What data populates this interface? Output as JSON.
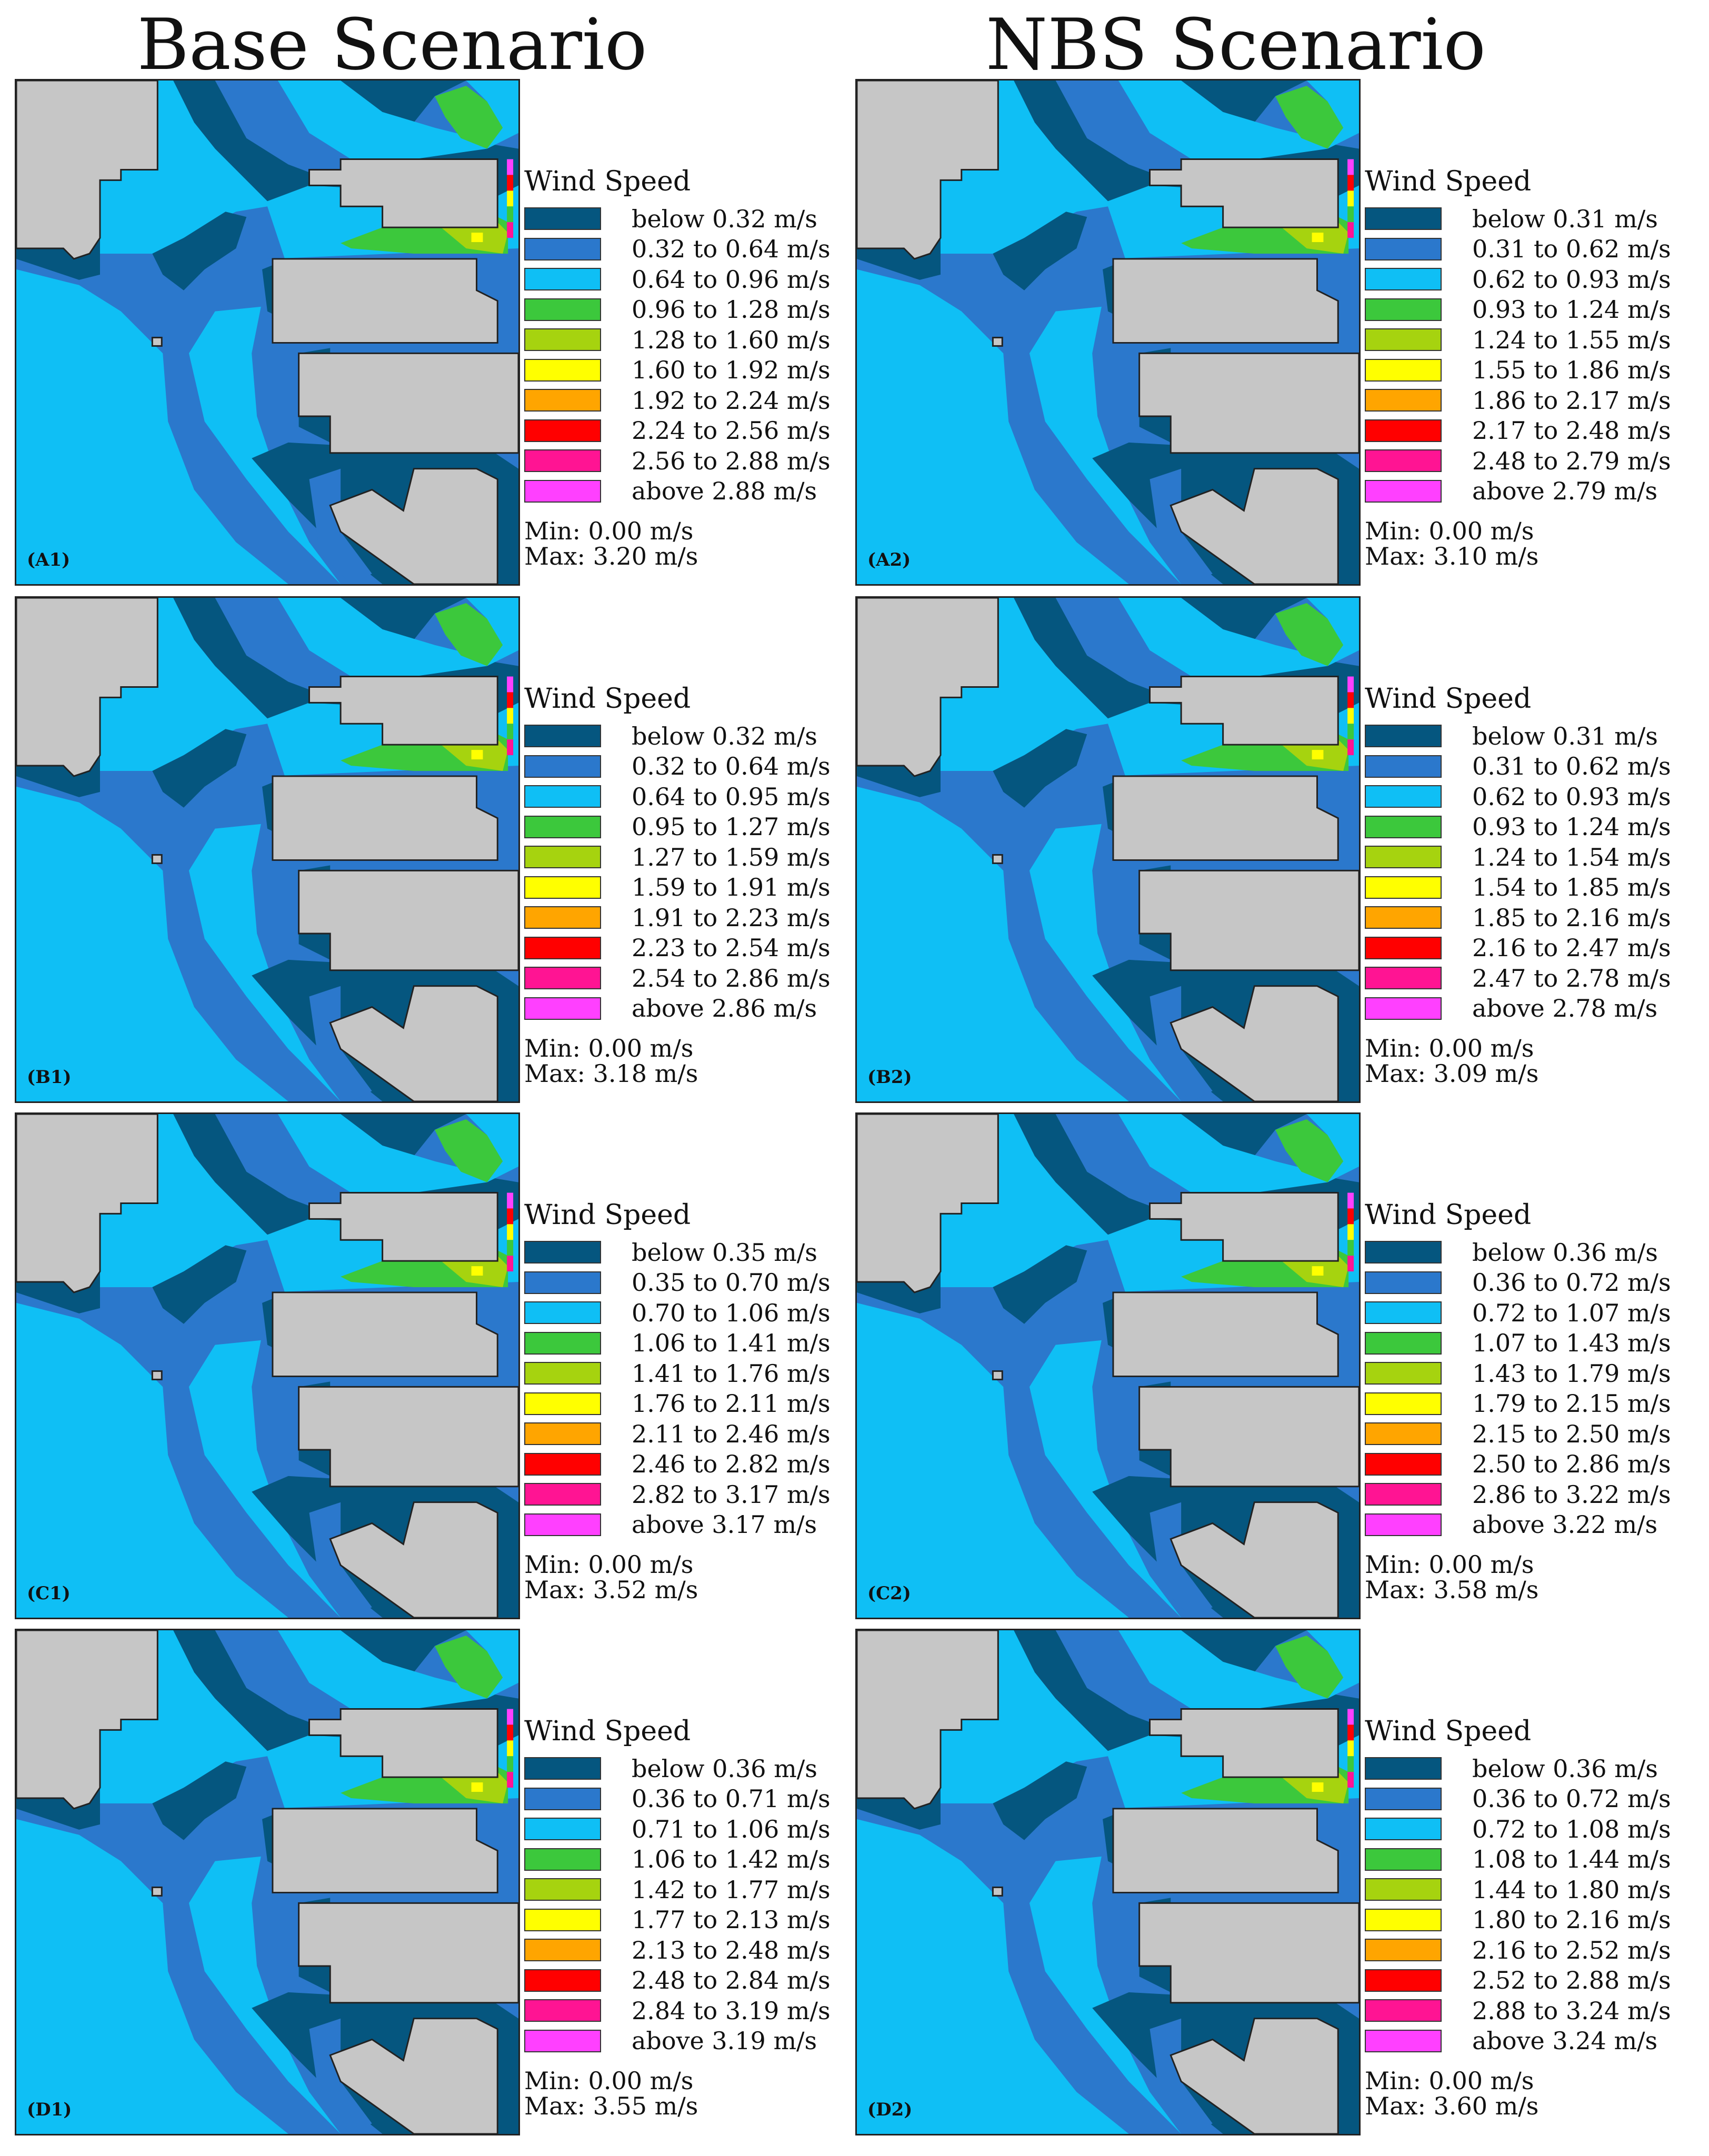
{
  "titles": {
    "base": "Base Scenario",
    "nbs": "NBS Scenario"
  },
  "legend_title": "Wind Speed",
  "colors": [
    "#05567f",
    "#2b78cc",
    "#0fbff5",
    "#3cc83c",
    "#a6d30f",
    "#ffff00",
    "#ffa500",
    "#ff0000",
    "#ff1493",
    "#ff40ff"
  ],
  "map_colors": {
    "background": "#0fbff5",
    "low": "#05567f",
    "mid": "#2b78cc",
    "building": "#c6c6c6",
    "green": "#3cc83c",
    "yellowgreen": "#a6d30f",
    "yellow": "#ffff00"
  },
  "panels": [
    {
      "label": "(A1)",
      "min": "Min: 0.00 m/s",
      "max": "Max: 3.20 m/s",
      "ranges": [
        "below 0.32 m/s",
        "0.32 to 0.64 m/s",
        "0.64 to 0.96 m/s",
        "0.96 to 1.28 m/s",
        "1.28 to 1.60 m/s",
        "1.60 to 1.92 m/s",
        "1.92 to 2.24 m/s",
        "2.24 to 2.56 m/s",
        "2.56 to 2.88 m/s",
        "above 2.88 m/s"
      ]
    },
    {
      "label": "(A2)",
      "min": "Min: 0.00 m/s",
      "max": "Max: 3.10 m/s",
      "ranges": [
        "below 0.31 m/s",
        "0.31 to 0.62 m/s",
        "0.62 to 0.93 m/s",
        "0.93 to 1.24 m/s",
        "1.24 to 1.55 m/s",
        "1.55 to 1.86 m/s",
        "1.86 to 2.17 m/s",
        "2.17 to 2.48 m/s",
        "2.48 to 2.79 m/s",
        "above 2.79 m/s"
      ]
    },
    {
      "label": "(B1)",
      "min": "Min: 0.00 m/s",
      "max": "Max: 3.18 m/s",
      "ranges": [
        "below 0.32 m/s",
        "0.32 to 0.64 m/s",
        "0.64 to 0.95 m/s",
        "0.95 to 1.27 m/s",
        "1.27 to 1.59 m/s",
        "1.59 to 1.91 m/s",
        "1.91 to 2.23 m/s",
        "2.23 to 2.54 m/s",
        "2.54 to 2.86 m/s",
        "above 2.86 m/s"
      ]
    },
    {
      "label": "(B2)",
      "min": "Min: 0.00 m/s",
      "max": "Max: 3.09 m/s",
      "ranges": [
        "below 0.31 m/s",
        "0.31 to 0.62 m/s",
        "0.62 to 0.93 m/s",
        "0.93 to 1.24 m/s",
        "1.24 to 1.54 m/s",
        "1.54 to 1.85 m/s",
        "1.85 to 2.16 m/s",
        "2.16 to 2.47 m/s",
        "2.47 to 2.78 m/s",
        "above 2.78 m/s"
      ]
    },
    {
      "label": "(C1)",
      "min": "Min: 0.00 m/s",
      "max": "Max: 3.52 m/s",
      "ranges": [
        "below 0.35 m/s",
        "0.35 to 0.70 m/s",
        "0.70 to 1.06 m/s",
        "1.06 to 1.41 m/s",
        "1.41 to 1.76 m/s",
        "1.76 to 2.11 m/s",
        "2.11 to 2.46 m/s",
        "2.46 to 2.82 m/s",
        "2.82 to 3.17 m/s",
        "above 3.17 m/s"
      ]
    },
    {
      "label": "(C2)",
      "min": "Min: 0.00 m/s",
      "max": "Max: 3.58 m/s",
      "ranges": [
        "below 0.36 m/s",
        "0.36 to 0.72 m/s",
        "0.72 to 1.07 m/s",
        "1.07 to 1.43 m/s",
        "1.43 to 1.79 m/s",
        "1.79 to 2.15 m/s",
        "2.15 to 2.50 m/s",
        "2.50 to 2.86 m/s",
        "2.86 to 3.22 m/s",
        "above 3.22 m/s"
      ]
    },
    {
      "label": "(D1)",
      "min": "Min: 0.00 m/s",
      "max": "Max: 3.55 m/s",
      "ranges": [
        "below 0.36 m/s",
        "0.36 to 0.71 m/s",
        "0.71 to 1.06 m/s",
        "1.06 to 1.42 m/s",
        "1.42 to 1.77 m/s",
        "1.77 to 2.13 m/s",
        "2.13 to 2.48 m/s",
        "2.48 to 2.84 m/s",
        "2.84 to 3.19 m/s",
        "above 3.19 m/s"
      ]
    },
    {
      "label": "(D2)",
      "min": "Min: 0.00 m/s",
      "max": "Max: 3.60 m/s",
      "ranges": [
        "below 0.36 m/s",
        "0.36 to 0.72 m/s",
        "0.72 to 1.08 m/s",
        "1.08 to 1.44 m/s",
        "1.44 to 1.80 m/s",
        "1.80 to 2.16 m/s",
        "2.16 to 2.52 m/s",
        "2.52 to 2.88 m/s",
        "2.88 to 3.24 m/s",
        "above 3.24 m/s"
      ]
    }
  ]
}
